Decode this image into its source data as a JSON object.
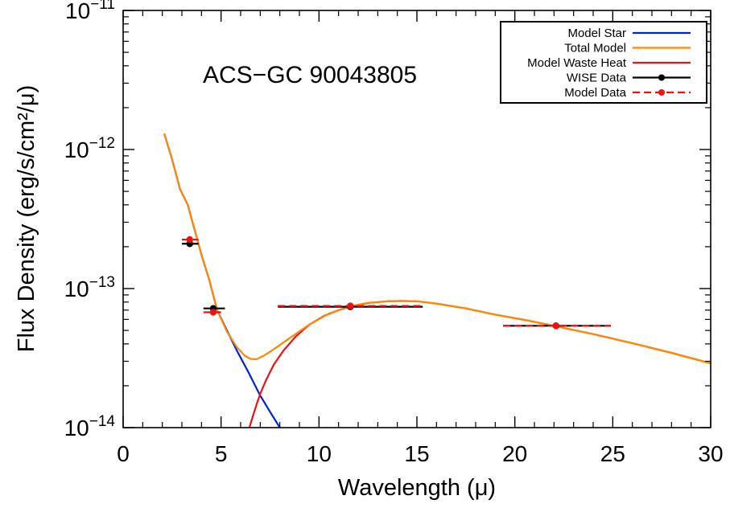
{
  "chart_data": {
    "type": "line",
    "title": "ACS−GC 90043805",
    "xlabel": "Wavelength (μ)",
    "ylabel": "Flux Density (erg/s/cm²/μ)",
    "xlim": [
      0,
      30
    ],
    "ylim": [
      1e-14,
      1e-11
    ],
    "yscale": "log",
    "grid": false,
    "legend_position": "top-right",
    "x_ticks": [
      0,
      5,
      10,
      15,
      20,
      25,
      30
    ],
    "x_tick_labels": [
      "0",
      "5",
      "10",
      "15",
      "20",
      "25",
      "30"
    ],
    "y_ticks": [
      1e-14,
      1e-13,
      1e-12,
      1e-11
    ],
    "y_tick_labels": [
      {
        "base": "10",
        "exp": "−14"
      },
      {
        "base": "10",
        "exp": "−13"
      },
      {
        "base": "10",
        "exp": "−12"
      },
      {
        "base": "10",
        "exp": "−11"
      }
    ],
    "series": [
      {
        "name": "Model Star",
        "kind": "line",
        "color": "#0022dd",
        "x": [
          2.1,
          2.5,
          2.9,
          3.3,
          3.6,
          4.0,
          4.4,
          4.8,
          5.3,
          5.8,
          6.4,
          7.0,
          7.5,
          8.0
        ],
        "y": [
          1.3e-12,
          8.5e-13,
          5.2e-13,
          4e-13,
          2.8e-13,
          1.75e-13,
          1.15e-13,
          7e-14,
          5e-14,
          3.6e-14,
          2.5e-14,
          1.7e-14,
          1.3e-14,
          1e-14
        ]
      },
      {
        "name": "Total Model",
        "kind": "line",
        "color": "#ff8800",
        "x": [
          2.1,
          2.5,
          2.9,
          3.3,
          3.6,
          4.0,
          4.4,
          4.8,
          5.3,
          5.8,
          6.2,
          6.5,
          6.8,
          7.2,
          7.8,
          8.5,
          9.5,
          10.5,
          11.5,
          12.5,
          13.5,
          14.2,
          15.0,
          16.0,
          17.5,
          19.0,
          20.5,
          22.0,
          24.0,
          26.0,
          28.0,
          30.0
        ],
        "y": [
          1.3e-12,
          8.5e-13,
          5.2e-13,
          4e-13,
          2.8e-13,
          1.75e-13,
          1.15e-13,
          7e-14,
          4.9e-14,
          3.8e-14,
          3.3e-14,
          3.12e-14,
          3.1e-14,
          3.3e-14,
          3.75e-14,
          4.4e-14,
          5.5e-14,
          6.6e-14,
          7.4e-14,
          7.9e-14,
          8.1e-14,
          8.15e-14,
          8.1e-14,
          7.8e-14,
          7.2e-14,
          6.5e-14,
          5.95e-14,
          5.4e-14,
          4.7e-14,
          4.05e-14,
          3.45e-14,
          2.9e-14
        ]
      },
      {
        "name": "Model Waste Heat",
        "kind": "line",
        "color": "#ee1111",
        "x": [
          6.45,
          6.6,
          6.8,
          7.0,
          7.3,
          7.7,
          8.2,
          8.8,
          9.5,
          10.3,
          11.0,
          11.8,
          12.6,
          13.5,
          14.2,
          15.0,
          16.0,
          17.5,
          19.0,
          20.5,
          22.0,
          24.0,
          26.0,
          28.0,
          30.0
        ],
        "y": [
          1e-14,
          1.18e-14,
          1.45e-14,
          1.75e-14,
          2.2e-14,
          2.85e-14,
          3.6e-14,
          4.5e-14,
          5.5e-14,
          6.4e-14,
          7e-14,
          7.55e-14,
          7.9e-14,
          8.1e-14,
          8.15e-14,
          8.1e-14,
          7.8e-14,
          7.2e-14,
          6.5e-14,
          5.95e-14,
          5.4e-14,
          4.7e-14,
          4.05e-14,
          3.45e-14,
          2.9e-14
        ]
      },
      {
        "name": "WISE Data",
        "kind": "points",
        "color": "#000000",
        "points": [
          {
            "x": 3.4,
            "y": 2.1e-13,
            "xmin": 3.0,
            "xmax": 3.85
          },
          {
            "x": 4.6,
            "y": 7.2e-14,
            "xmin": 4.1,
            "xmax": 5.2
          },
          {
            "x": 11.6,
            "y": 7.4e-14,
            "xmin": 7.9,
            "xmax": 15.3
          },
          {
            "x": 22.1,
            "y": 5.4e-14,
            "xmin": 19.4,
            "xmax": 24.9
          }
        ]
      },
      {
        "name": "Model Data",
        "kind": "points",
        "color": "#ee1111",
        "dashed": true,
        "points": [
          {
            "x": 3.4,
            "y": 2.25e-13,
            "xmin": 3.0,
            "xmax": 3.85
          },
          {
            "x": 4.6,
            "y": 6.75e-14,
            "xmin": 4.1,
            "xmax": 5.0
          },
          {
            "x": 11.6,
            "y": 7.5e-14,
            "xmin": 7.9,
            "xmax": 15.3
          },
          {
            "x": 22.1,
            "y": 5.4e-14,
            "xmin": 19.4,
            "xmax": 24.9
          }
        ]
      }
    ]
  }
}
